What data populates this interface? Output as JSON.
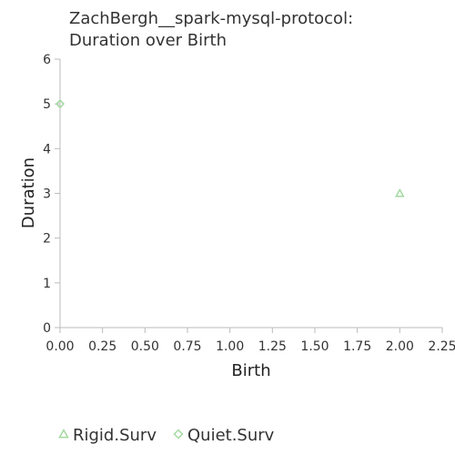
{
  "chart_data": {
    "type": "scatter",
    "title_lines": [
      "ZachBergh__spark-mysql-protocol:",
      "Duration over Birth"
    ],
    "xlabel": "Birth",
    "ylabel": "Duration",
    "xlim": [
      0,
      2.25
    ],
    "ylim": [
      0,
      6
    ],
    "x_ticks": [
      "0.00",
      "0.25",
      "0.50",
      "0.75",
      "1.00",
      "1.25",
      "1.50",
      "1.75",
      "2.00",
      "2.25"
    ],
    "y_ticks": [
      "0",
      "1",
      "2",
      "3",
      "4",
      "5",
      "6"
    ],
    "grid": false,
    "legend_position": "bottom-left",
    "series": [
      {
        "name": "Rigid.Surv",
        "marker": "triangle",
        "color": "#a3d9a0",
        "points": [
          {
            "x": 2.0,
            "y": 3
          }
        ]
      },
      {
        "name": "Quiet.Surv",
        "marker": "diamond",
        "color": "#a3d9a0",
        "points": [
          {
            "x": 0.0,
            "y": 5
          }
        ]
      }
    ]
  }
}
